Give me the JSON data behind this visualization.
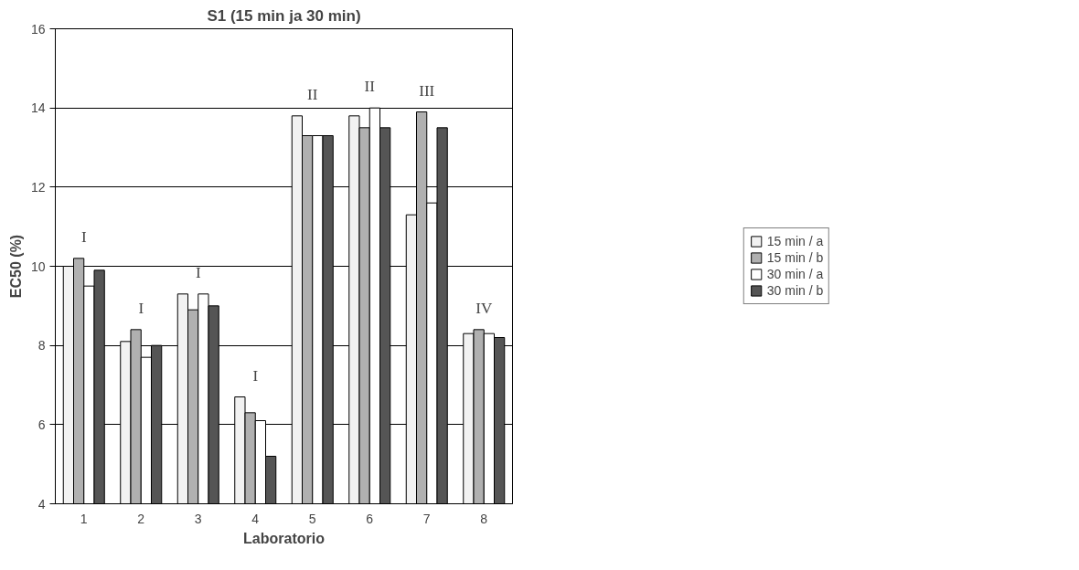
{
  "chart_data": {
    "type": "bar",
    "title": "S1 (15 min ja 30 min)",
    "xlabel": "Laboratorio",
    "ylabel": "EC50 (%)",
    "categories": [
      "1",
      "2",
      "3",
      "4",
      "5",
      "6",
      "7",
      "8"
    ],
    "series": [
      {
        "name": "15 min / a",
        "color": "#f2f2f2",
        "values": [
          10.0,
          8.1,
          9.3,
          6.7,
          13.8,
          13.8,
          11.3,
          8.3
        ]
      },
      {
        "name": "15 min / b",
        "color": "#b0b0b0",
        "values": [
          10.2,
          8.4,
          8.9,
          6.3,
          13.3,
          13.5,
          13.9,
          8.4
        ]
      },
      {
        "name": "30 min / a",
        "color": "#ffffff",
        "values": [
          9.5,
          7.7,
          9.3,
          6.1,
          13.3,
          14.0,
          11.6,
          8.3
        ]
      },
      {
        "name": "30 min / b",
        "color": "#555555",
        "values": [
          9.9,
          8.0,
          9.0,
          5.2,
          13.3,
          13.5,
          13.5,
          8.2
        ]
      }
    ],
    "annotations": [
      "I",
      "I",
      "I",
      "I",
      "II",
      "II",
      "III",
      "IV"
    ],
    "ylim": [
      4,
      16
    ],
    "yticks": [
      4,
      6,
      8,
      10,
      12,
      14,
      16
    ],
    "grid": "y",
    "legend": "right"
  }
}
